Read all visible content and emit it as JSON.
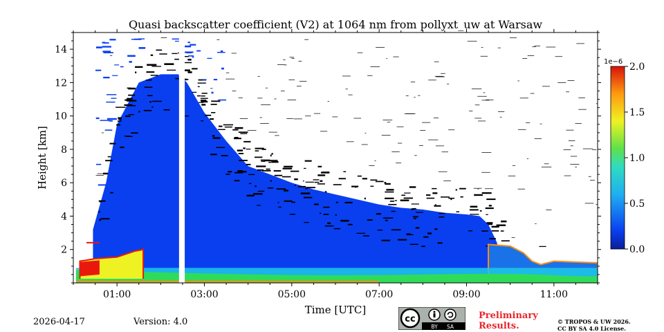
{
  "chart_data": {
    "type": "heatmap",
    "title": "Quasi backscatter coefficient (V2) at 1064 nm from pollyxt_uw at Warsaw",
    "xlabel": "Time [UTC]",
    "ylabel": "Height [km]",
    "xlim_hours": [
      0.0,
      12.0
    ],
    "ylim_km": [
      0.0,
      15.0
    ],
    "x_ticks": [
      {
        "value": 1,
        "label": "01:00"
      },
      {
        "value": 3,
        "label": "03:00"
      },
      {
        "value": 5,
        "label": "05:00"
      },
      {
        "value": 7,
        "label": "07:00"
      },
      {
        "value": 9,
        "label": "09:00"
      },
      {
        "value": 11,
        "label": "11:00"
      }
    ],
    "x_minor_step_hours": 0.5,
    "y_ticks": [
      {
        "value": 2,
        "label": "2"
      },
      {
        "value": 4,
        "label": "4"
      },
      {
        "value": 6,
        "label": "6"
      },
      {
        "value": 8,
        "label": "8"
      },
      {
        "value": 10,
        "label": "10"
      },
      {
        "value": 12,
        "label": "12"
      },
      {
        "value": 14,
        "label": "14"
      }
    ],
    "y_minor_step_km": 0.5,
    "colorbar": {
      "colormap": "jet",
      "range": [
        0.0,
        2e-06
      ],
      "scale_label": "1e−6",
      "ticks": [
        {
          "value": 0.0,
          "label": "0.0"
        },
        {
          "value": 0.5,
          "label": "0.5"
        },
        {
          "value": 1.0,
          "label": "1.0"
        },
        {
          "value": 1.5,
          "label": "1.5"
        },
        {
          "value": 2.0,
          "label": "2.0"
        }
      ]
    },
    "data_gap_hours": [
      2.42,
      2.55
    ],
    "signal_top_km": [
      {
        "t": 0.45,
        "h": 3.2
      },
      {
        "t": 0.75,
        "h": 6.0
      },
      {
        "t": 1.0,
        "h": 9.5
      },
      {
        "t": 1.5,
        "h": 12.0
      },
      {
        "t": 2.0,
        "h": 12.5
      },
      {
        "t": 2.4,
        "h": 12.5
      },
      {
        "t": 2.6,
        "h": 12.0
      },
      {
        "t": 3.0,
        "h": 10.2
      },
      {
        "t": 3.5,
        "h": 8.5
      },
      {
        "t": 4.0,
        "h": 7.0
      },
      {
        "t": 4.5,
        "h": 6.5
      },
      {
        "t": 5.0,
        "h": 6.0
      },
      {
        "t": 5.5,
        "h": 5.6
      },
      {
        "t": 6.0,
        "h": 5.3
      },
      {
        "t": 6.5,
        "h": 5.0
      },
      {
        "t": 7.0,
        "h": 4.7
      },
      {
        "t": 7.5,
        "h": 4.5
      },
      {
        "t": 8.0,
        "h": 4.4
      },
      {
        "t": 8.5,
        "h": 4.2
      },
      {
        "t": 9.0,
        "h": 4.1
      },
      {
        "t": 9.3,
        "h": 4.0
      },
      {
        "t": 9.5,
        "h": 3.5
      },
      {
        "t": 9.7,
        "h": 2.4
      }
    ],
    "cloud_base_km": [
      {
        "t": 0.15,
        "h": 1.3
      },
      {
        "t": 0.5,
        "h": 1.45
      },
      {
        "t": 1.0,
        "h": 1.55
      },
      {
        "t": 1.4,
        "h": 1.9
      },
      {
        "t": 1.6,
        "h": 2.0
      }
    ],
    "boundary_layer_top_km": [
      {
        "t": 9.5,
        "h": 2.3
      },
      {
        "t": 10.0,
        "h": 2.2
      },
      {
        "t": 10.3,
        "h": 1.8
      },
      {
        "t": 10.5,
        "h": 1.3
      },
      {
        "t": 10.7,
        "h": 1.1
      },
      {
        "t": 11.0,
        "h": 1.3
      },
      {
        "t": 11.5,
        "h": 1.25
      },
      {
        "t": 12.0,
        "h": 1.2
      }
    ],
    "colors": {
      "low": "#0a3ff0",
      "mid": "#1fc8e8",
      "green": "#2fdc5a",
      "yellow": "#eef222",
      "orange": "#ff8c10",
      "red": "#e8180c",
      "noise": "#000000"
    }
  },
  "footer": {
    "date": "2026-04-17",
    "version": "Version: 4.0",
    "preliminary_line1": "Preliminary",
    "preliminary_line2": "Results.",
    "copyright_line1": "© TROPOS & UW 2026.",
    "copyright_line2": "CC BY SA 4.0 License.",
    "cc_icon": "creative-commons-by-sa-icon",
    "cc_by": "BY",
    "cc_sa": "SA"
  }
}
